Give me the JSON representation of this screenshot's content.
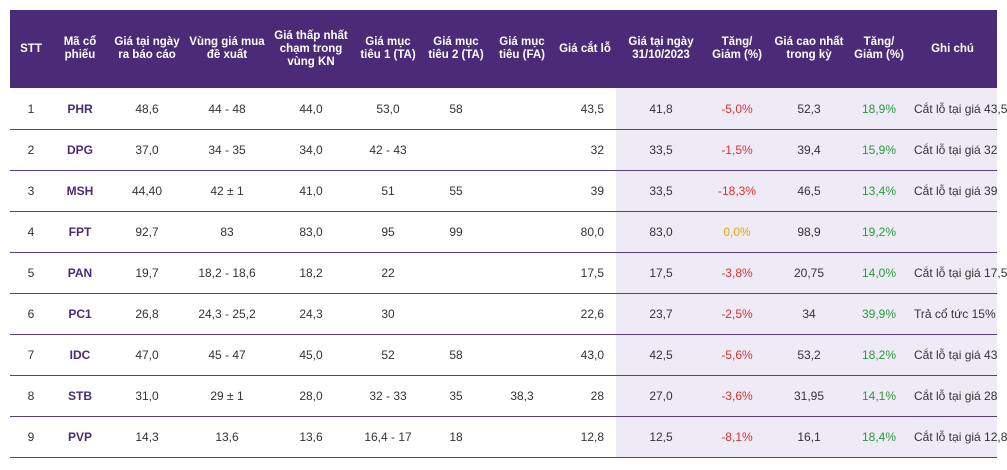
{
  "headers": {
    "stt": "STT",
    "ticker": "Mã cổ phiếu",
    "report_price": "Giá tại ngày ra báo cáo",
    "buy_zone": "Vùng giá mua đề xuất",
    "lowest": "Giá thấp nhất chạm trong vùng KN",
    "target1": "Giá mục tiêu 1 (TA)",
    "target2": "Giá mục tiêu 2 (TA)",
    "target_fa": "Giá mục tiêu (FA)",
    "stop_loss": "Giá cắt lỗ",
    "price_date": "Giá tại ngày 31/10/2023",
    "change1": "Tăng/ Giảm (%)",
    "highest": "Giá cao nhất trong kỳ",
    "change2": "Tăng/ Giảm (%)",
    "note": "Ghi chú"
  },
  "rows": [
    {
      "stt": "1",
      "ticker": "PHR",
      "report_price": "48,6",
      "buy_zone": "44 - 48",
      "lowest": "44,0",
      "target1": "53,0",
      "target2": "58",
      "target_fa": "",
      "stop_loss": "43,5",
      "price_date": "41,8",
      "change1": "-5,0%",
      "highest": "52,3",
      "change2": "18,9%",
      "note": "Cắt lỗ tại giá 43,5"
    },
    {
      "stt": "2",
      "ticker": "DPG",
      "report_price": "37,0",
      "buy_zone": "34 - 35",
      "lowest": "34,0",
      "target1": "42 - 43",
      "target2": "",
      "target_fa": "",
      "stop_loss": "32",
      "price_date": "33,5",
      "change1": "-1,5%",
      "highest": "39,4",
      "change2": "15,9%",
      "note": "Cắt lỗ tại giá 32"
    },
    {
      "stt": "3",
      "ticker": "MSH",
      "report_price": "44,40",
      "buy_zone": "42 ± 1",
      "lowest": "41,0",
      "target1": "51",
      "target2": "55",
      "target_fa": "",
      "stop_loss": "39",
      "price_date": "33,5",
      "change1": "-18,3%",
      "highest": "46,5",
      "change2": "13,4%",
      "note": "Cắt lỗ tại giá 39"
    },
    {
      "stt": "4",
      "ticker": "FPT",
      "report_price": "92,7",
      "buy_zone": "83",
      "lowest": "83,0",
      "target1": "95",
      "target2": "99",
      "target_fa": "",
      "stop_loss": "80,0",
      "price_date": "83,0",
      "change1": "0,0%",
      "highest": "98,9",
      "change2": "19,2%",
      "note": ""
    },
    {
      "stt": "5",
      "ticker": "PAN",
      "report_price": "19,7",
      "buy_zone": "18,2 - 18,6",
      "lowest": "18,2",
      "target1": "22",
      "target2": "",
      "target_fa": "",
      "stop_loss": "17,5",
      "price_date": "17,5",
      "change1": "-3,8%",
      "highest": "20,75",
      "change2": "14,0%",
      "note": "Cắt lỗ tại giá 17,5"
    },
    {
      "stt": "6",
      "ticker": "PC1",
      "report_price": "26,8",
      "buy_zone": "24,3 - 25,2",
      "lowest": "24,3",
      "target1": "30",
      "target2": "",
      "target_fa": "",
      "stop_loss": "22,6",
      "price_date": "23,7",
      "change1": "-2,5%",
      "highest": "34",
      "change2": "39,9%",
      "note": "Trả cổ tức 15%"
    },
    {
      "stt": "7",
      "ticker": "IDC",
      "report_price": "47,0",
      "buy_zone": "45 - 47",
      "lowest": "45,0",
      "target1": "52",
      "target2": "58",
      "target_fa": "",
      "stop_loss": "43,0",
      "price_date": "42,5",
      "change1": "-5,6%",
      "highest": "53,2",
      "change2": "18,2%",
      "note": "Cắt lỗ tại giá 43"
    },
    {
      "stt": "8",
      "ticker": "STB",
      "report_price": "31,0",
      "buy_zone": "29 ± 1",
      "lowest": "28,0",
      "target1": "32 - 33",
      "target2": "35",
      "target_fa": "38,3",
      "stop_loss": "28",
      "price_date": "27,0",
      "change1": "-3,6%",
      "highest": "31,95",
      "change2": "14,1%",
      "note": "Cắt lỗ tại giá 28"
    },
    {
      "stt": "9",
      "ticker": "PVP",
      "report_price": "14,3",
      "buy_zone": "13,6",
      "lowest": "13,6",
      "target1": "16,4 - 17",
      "target2": "18",
      "target_fa": "",
      "stop_loss": "12,8",
      "price_date": "12,5",
      "change1": "-8,1%",
      "highest": "16,1",
      "change2": "18,4%",
      "note": "Cắt lỗ tại giá 12,8"
    }
  ],
  "colors": {
    "header_bg": "#4b2a78",
    "shade": "#eeebf7",
    "negative": "#e0302b",
    "zero": "#f0a500",
    "positive": "#2a9a3c"
  }
}
